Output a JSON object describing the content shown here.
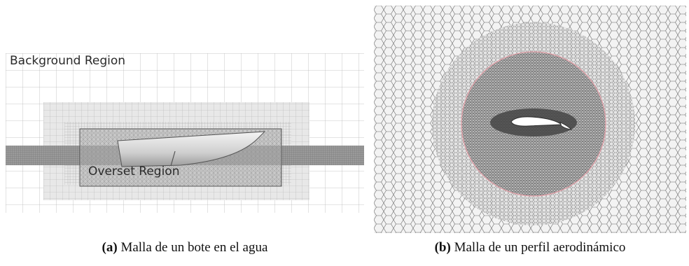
{
  "figure": {
    "panel_a": {
      "background_label": "Background Region",
      "overset_label": "Overset Region",
      "caption_tag": "(a)",
      "caption_text": " Malla de un bote en el agua"
    },
    "panel_b": {
      "caption_tag": "(b)",
      "caption_text": " Malla de un perfil aerodinámico",
      "interface_color": "#e0a0a8"
    }
  }
}
